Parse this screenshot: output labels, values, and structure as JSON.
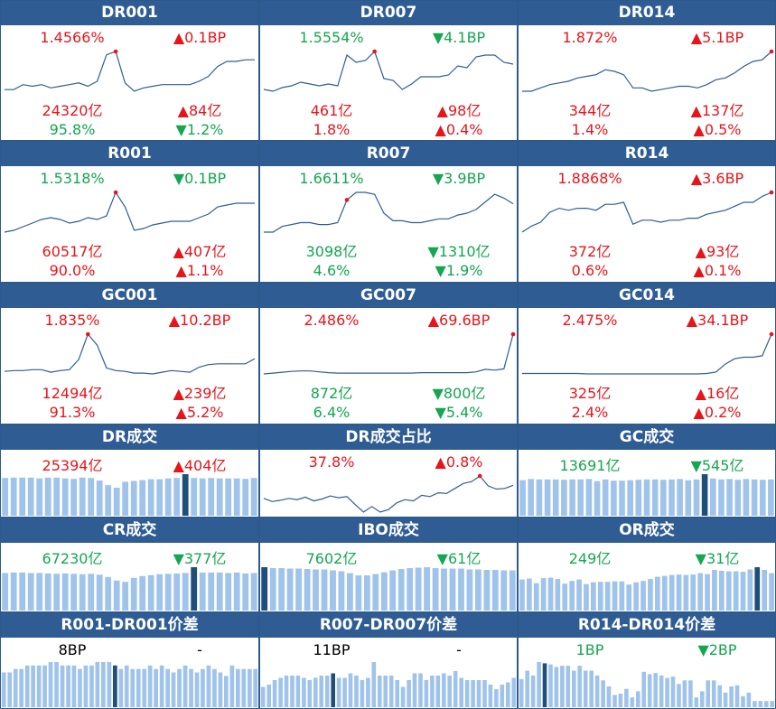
{
  "colors": {
    "header_bg": "#2f5d93",
    "red": "#e8141b",
    "green": "#14a650",
    "line": "#2f5d93",
    "bar": "#9fc3ea",
    "bar_highlight": "#1f4e79",
    "dot": "#e8141b"
  },
  "panels": [
    {
      "title": "DR001",
      "kind": "line",
      "v1": "1.4566%",
      "v1_color": "red",
      "c1": "▲0.1BP",
      "c1_color": "red",
      "v2": "24320亿",
      "v2_color": "red",
      "c2": "▲84亿",
      "c2_color": "red",
      "v3": "95.8%",
      "v3_color": "green",
      "c3": "▼1.2%",
      "c3_color": "green",
      "series": [
        1.4,
        1.4,
        1.43,
        1.42,
        1.43,
        1.41,
        1.42,
        1.43,
        1.44,
        1.42,
        1.45,
        1.61,
        1.63,
        1.44,
        1.39,
        1.41,
        1.42,
        1.43,
        1.43,
        1.43,
        1.43,
        1.45,
        1.48,
        1.54,
        1.57,
        1.57,
        1.58,
        1.58
      ],
      "dot_index": 12
    },
    {
      "title": "DR007",
      "kind": "line",
      "v1": "1.5554%",
      "v1_color": "green",
      "c1": "▼4.1BP",
      "c1_color": "green",
      "v2": "461亿",
      "v2_color": "red",
      "c2": "▲98亿",
      "c2_color": "red",
      "v3": "1.8%",
      "v3_color": "red",
      "c3": "▲0.4%",
      "c3_color": "red",
      "series": [
        1.4,
        1.39,
        1.41,
        1.42,
        1.44,
        1.43,
        1.42,
        1.43,
        1.42,
        1.59,
        1.55,
        1.56,
        1.61,
        1.46,
        1.45,
        1.4,
        1.43,
        1.47,
        1.47,
        1.47,
        1.48,
        1.53,
        1.52,
        1.58,
        1.59,
        1.59,
        1.55,
        1.54
      ],
      "dot_index": 12
    },
    {
      "title": "DR014",
      "kind": "line",
      "v1": "1.872%",
      "v1_color": "red",
      "c1": "▲5.1BP",
      "c1_color": "red",
      "v2": "344亿",
      "v2_color": "red",
      "c2": "▲137亿",
      "c2_color": "red",
      "v3": "1.4%",
      "v3_color": "red",
      "c3": "▲0.5%",
      "c3_color": "red",
      "series": [
        1.58,
        1.58,
        1.6,
        1.62,
        1.63,
        1.64,
        1.66,
        1.67,
        1.68,
        1.71,
        1.7,
        1.68,
        1.6,
        1.6,
        1.58,
        1.59,
        1.6,
        1.61,
        1.61,
        1.6,
        1.62,
        1.65,
        1.66,
        1.69,
        1.73,
        1.76,
        1.77,
        1.82
      ],
      "dot_index": 27
    },
    {
      "title": "R001",
      "kind": "line",
      "v1": "1.5318%",
      "v1_color": "green",
      "c1": "▼0.1BP",
      "c1_color": "green",
      "v2": "60517亿",
      "v2_color": "red",
      "c2": "▲407亿",
      "c2_color": "red",
      "v3": "90.0%",
      "v3_color": "red",
      "c3": "▲1.1%",
      "c3_color": "red",
      "series": [
        1.41,
        1.42,
        1.44,
        1.46,
        1.48,
        1.49,
        1.48,
        1.46,
        1.47,
        1.49,
        1.48,
        1.5,
        1.63,
        1.55,
        1.42,
        1.43,
        1.45,
        1.46,
        1.47,
        1.47,
        1.47,
        1.49,
        1.51,
        1.55,
        1.56,
        1.57,
        1.57,
        1.57
      ],
      "dot_index": 12
    },
    {
      "title": "R007",
      "kind": "line",
      "v1": "1.6611%",
      "v1_color": "green",
      "c1": "▼3.9BP",
      "c1_color": "green",
      "v2": "3098亿",
      "v2_color": "green",
      "c2": "▼1310亿",
      "c2_color": "green",
      "v3": "4.6%",
      "v3_color": "green",
      "c3": "▼1.9%",
      "c3_color": "green",
      "series": [
        1.46,
        1.46,
        1.49,
        1.5,
        1.51,
        1.51,
        1.5,
        1.5,
        1.51,
        1.63,
        1.67,
        1.67,
        1.66,
        1.56,
        1.52,
        1.52,
        1.51,
        1.51,
        1.52,
        1.53,
        1.53,
        1.55,
        1.56,
        1.58,
        1.62,
        1.66,
        1.64,
        1.61
      ],
      "dot_index": 9
    },
    {
      "title": "R014",
      "kind": "line",
      "v1": "1.8868%",
      "v1_color": "red",
      "c1": "▲3.6BP",
      "c1_color": "red",
      "v2": "372亿",
      "v2_color": "red",
      "c2": "▲93亿",
      "c2_color": "red",
      "v3": "0.6%",
      "v3_color": "red",
      "c3": "▲0.1%",
      "c3_color": "red",
      "series": [
        1.67,
        1.7,
        1.72,
        1.77,
        1.79,
        1.78,
        1.79,
        1.79,
        1.78,
        1.81,
        1.81,
        1.82,
        1.71,
        1.73,
        1.73,
        1.72,
        1.73,
        1.73,
        1.74,
        1.74,
        1.76,
        1.77,
        1.78,
        1.8,
        1.82,
        1.82,
        1.85,
        1.87
      ],
      "dot_index": 27
    },
    {
      "title": "GC001",
      "kind": "line",
      "v1": "1.835%",
      "v1_color": "red",
      "c1": "▲10.2BP",
      "c1_color": "red",
      "v2": "12494亿",
      "v2_color": "red",
      "c2": "▲239亿",
      "c2_color": "red",
      "v3": "91.3%",
      "v3_color": "red",
      "c3": "▲5.2%",
      "c3_color": "red",
      "series": [
        1.42,
        1.43,
        1.43,
        1.44,
        1.44,
        1.41,
        1.43,
        1.44,
        1.56,
        1.86,
        1.73,
        1.46,
        1.43,
        1.42,
        1.4,
        1.4,
        1.39,
        1.41,
        1.43,
        1.42,
        1.41,
        1.47,
        1.5,
        1.51,
        1.51,
        1.51,
        1.51,
        1.57
      ],
      "dot_index": 9
    },
    {
      "title": "GC007",
      "kind": "line",
      "v1": "2.486%",
      "v1_color": "red",
      "c1": "▲69.6BP",
      "c1_color": "red",
      "v2": "872亿",
      "v2_color": "green",
      "c2": "▼800亿",
      "c2_color": "green",
      "v3": "6.4%",
      "v3_color": "green",
      "c3": "▼5.4%",
      "c3_color": "green",
      "series": [
        1.55,
        1.57,
        1.59,
        1.61,
        1.62,
        1.62,
        1.6,
        1.58,
        1.57,
        1.57,
        1.57,
        1.57,
        1.57,
        1.57,
        1.57,
        1.57,
        1.57,
        1.58,
        1.58,
        1.58,
        1.58,
        1.58,
        1.58,
        1.6,
        1.66,
        1.64,
        1.67,
        2.49
      ],
      "dot_index": 27
    },
    {
      "title": "GC014",
      "kind": "line",
      "v1": "2.475%",
      "v1_color": "red",
      "c1": "▲34.1BP",
      "c1_color": "red",
      "v2": "325亿",
      "v2_color": "red",
      "c2": "▲16亿",
      "c2_color": "red",
      "v3": "2.4%",
      "v3_color": "red",
      "c3": "▲0.2%",
      "c3_color": "red",
      "series": [
        1.67,
        1.67,
        1.67,
        1.67,
        1.67,
        1.67,
        1.67,
        1.66,
        1.66,
        1.66,
        1.66,
        1.66,
        1.66,
        1.66,
        1.66,
        1.66,
        1.66,
        1.66,
        1.66,
        1.66,
        1.67,
        1.7,
        1.86,
        1.97,
        2.0,
        2.0,
        2.03,
        2.47
      ],
      "dot_index": 27
    },
    {
      "title": "DR成交",
      "kind": "bar",
      "v1": "25394亿",
      "v1_color": "red",
      "c1": "▲404亿",
      "c1_color": "red",
      "series": [
        89,
        90,
        90,
        90,
        88,
        90,
        90,
        88,
        87,
        90,
        89,
        83,
        72,
        66,
        80,
        82,
        84,
        86,
        86,
        88,
        89,
        98,
        89,
        88,
        89,
        88,
        88,
        88,
        87,
        89
      ],
      "highlight_index": 21
    },
    {
      "title": "DR成交占比",
      "kind": "line",
      "v1": "37.8%",
      "v1_color": "red",
      "c1": "▲0.8%",
      "c1_color": "red",
      "series": [
        92,
        91.5,
        91.7,
        92,
        91.8,
        92.2,
        91.6,
        91.9,
        92.4,
        92.1,
        92.3,
        91.0,
        89.8,
        90.7,
        89.8,
        90.2,
        91.3,
        91.8,
        91.6,
        92.5,
        92.3,
        92.9,
        92.8,
        93.6,
        94.4,
        94.7,
        95.6,
        94.0,
        93.5,
        93.6,
        94.1
      ],
      "dot_index": 26
    },
    {
      "title": "GC成交",
      "kind": "bar",
      "v1": "13691亿",
      "v1_color": "green",
      "c1": "▼545亿",
      "c1_color": "green",
      "series": [
        82,
        85,
        84,
        84,
        84,
        83,
        84,
        84,
        85,
        80,
        84,
        81,
        81,
        82,
        83,
        84,
        84,
        83,
        84,
        85,
        82,
        84,
        96,
        86,
        84,
        85,
        83,
        85,
        84,
        83,
        84
      ],
      "highlight_index": 22
    },
    {
      "title": "CR成交",
      "kind": "bar",
      "v1": "67230亿",
      "v1_color": "green",
      "c1": "▼377亿",
      "c1_color": "green",
      "series": [
        85,
        86,
        86,
        85,
        85,
        84,
        83,
        84,
        83,
        82,
        83,
        81,
        76,
        68,
        65,
        74,
        78,
        80,
        82,
        83,
        84,
        85,
        98,
        86,
        86,
        86,
        85,
        86,
        84,
        85
      ],
      "highlight_index": 22
    },
    {
      "title": "IBO成交",
      "kind": "bar",
      "v1": "7602亿",
      "v1_color": "green",
      "c1": "▼61亿",
      "c1_color": "green",
      "series": [
        95,
        93,
        93,
        92,
        92,
        91,
        90,
        90,
        88,
        86,
        82,
        77,
        77,
        80,
        84,
        88,
        91,
        93,
        94,
        95,
        93,
        92,
        92,
        92,
        90,
        90,
        89,
        89,
        88,
        88
      ],
      "highlight_index": 0
    },
    {
      "title": "OR成交",
      "kind": "bar",
      "v1": "249亿",
      "v1_color": "green",
      "c1": "▼31亿",
      "c1_color": "green",
      "series": [
        68,
        70,
        60,
        71,
        72,
        69,
        59,
        65,
        68,
        58,
        62,
        63,
        63,
        64,
        64,
        57,
        62,
        65,
        69,
        74,
        76,
        78,
        79,
        78,
        79,
        82,
        80,
        89,
        87,
        86,
        86,
        85,
        90,
        95,
        89,
        82
      ],
      "highlight_index": 33
    },
    {
      "title": "R001-DR001价差",
      "kind": "bar",
      "v1": "8BP",
      "v1_color": "black",
      "c1": "-",
      "c1_color": "black",
      "series": [
        10,
        10,
        11,
        11,
        12,
        12,
        12,
        12,
        13,
        13,
        12,
        12,
        12,
        11,
        12,
        12,
        13,
        13,
        13,
        12,
        11,
        12,
        11,
        11,
        11,
        12,
        11,
        12,
        11,
        10,
        11,
        12,
        11,
        10,
        11,
        12,
        11,
        10,
        9,
        12,
        11,
        11,
        11,
        11
      ],
      "highlight_index": 19
    },
    {
      "title": "R007-DR007价差",
      "kind": "bar",
      "v1": "11BP",
      "v1_color": "black",
      "c1": "-",
      "c1_color": "black",
      "series": [
        9,
        10,
        12,
        13,
        14,
        14,
        14,
        13,
        12,
        13,
        14,
        14,
        15,
        13,
        13,
        15,
        14,
        12,
        13,
        20,
        14,
        14,
        14,
        12,
        9,
        12,
        15,
        15,
        12,
        14,
        14,
        15,
        14,
        16,
        13,
        12,
        12,
        12,
        12,
        10,
        8,
        10,
        11,
        13
      ],
      "highlight_index": 12
    },
    {
      "title": "R014-DR014价差",
      "kind": "bar",
      "v1": "1BP",
      "v1_color": "green",
      "c1": "▼2BP",
      "c1_color": "green",
      "series": [
        23,
        30,
        26,
        37,
        36,
        35,
        33,
        34,
        34,
        30,
        34,
        30,
        30,
        26,
        22,
        17,
        10,
        11,
        15,
        8,
        13,
        29,
        27,
        28,
        26,
        24,
        25,
        19,
        22,
        22,
        8,
        13,
        22,
        22,
        18,
        12,
        17,
        18,
        9,
        12,
        5,
        5,
        5,
        5
      ],
      "highlight_index": 4
    }
  ]
}
